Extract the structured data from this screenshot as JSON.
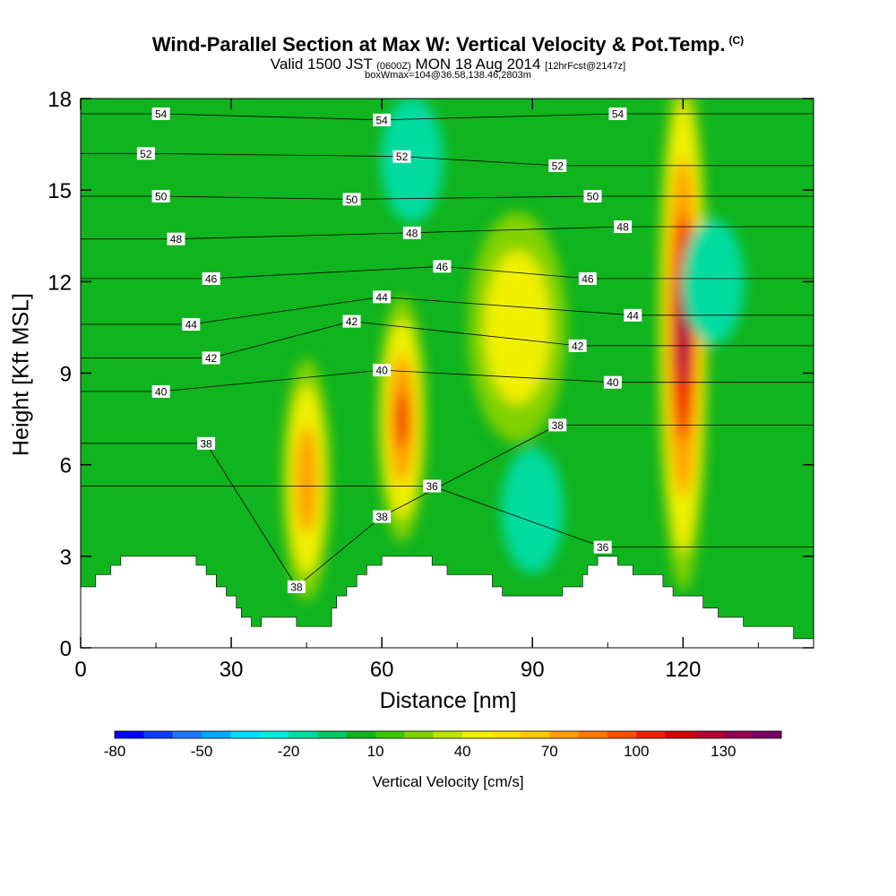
{
  "chart_data": {
    "type": "heatmap",
    "title": "Wind-Parallel Section at Max W: Vertical Velocity & Pot.Temp.",
    "title_mark": "(C)",
    "subtitle_main": "Valid 1500 JST",
    "subtitle_utc": "(0600Z)",
    "subtitle_date": "MON 18 Aug 2014",
    "subtitle_fcst": "[12hrFcst@2147z]",
    "subtitle2": "boxWmax=104@36.58,138.46,2803m",
    "xlabel": "Distance [nm]",
    "ylabel": "Height [Kft MSL]",
    "xlim": [
      0,
      146
    ],
    "ylim": [
      0,
      18
    ],
    "x_ticks": [
      "0",
      "30",
      "60",
      "90",
      "120"
    ],
    "y_ticks": [
      "0",
      "3",
      "6",
      "9",
      "12",
      "15",
      "18"
    ],
    "colorbar": {
      "label": "Vertical Velocity [cm/s]",
      "min": -80,
      "max": 150,
      "step": 10,
      "tick_labels": [
        "-80",
        "-50",
        "-20",
        "10",
        "40",
        "70",
        "100",
        "130"
      ],
      "colors": [
        "#0000ff",
        "#0a3cff",
        "#1e78ff",
        "#00aaff",
        "#00dcff",
        "#00f0dc",
        "#00dca0",
        "#00c864",
        "#10b41e",
        "#3cc800",
        "#82d200",
        "#bee600",
        "#f0f000",
        "#ffe100",
        "#ffc800",
        "#ffa000",
        "#ff7800",
        "#ff5000",
        "#f01e00",
        "#d20000",
        "#b40032",
        "#960050",
        "#780064"
      ]
    },
    "updraft_cores_cm_per_s": [
      {
        "x_nm": 45,
        "z_kft": 5.5,
        "w": 90
      },
      {
        "x_nm": 64,
        "z_kft": 7.5,
        "w": 105
      },
      {
        "x_nm": 87,
        "z_kft": 10.5,
        "w": 60
      },
      {
        "x_nm": 120,
        "z_kft": 10.5,
        "w": 140
      }
    ],
    "downdraft_zones_cm_per_s": [
      {
        "x_nm": 90,
        "z_kft": 4.5,
        "w": -15
      },
      {
        "x_nm": 126,
        "z_kft": 12,
        "w": -20
      },
      {
        "x_nm": 66,
        "z_kft": 16,
        "w": -15
      }
    ],
    "theta_contour_labels": [
      {
        "text": "54",
        "x": 16,
        "y": 17.5
      },
      {
        "text": "54",
        "x": 60,
        "y": 17.3
      },
      {
        "text": "54",
        "x": 107,
        "y": 17.5
      },
      {
        "text": "52",
        "x": 13,
        "y": 16.2
      },
      {
        "text": "52",
        "x": 64,
        "y": 16.1
      },
      {
        "text": "52",
        "x": 95,
        "y": 15.8
      },
      {
        "text": "50",
        "x": 16,
        "y": 14.8
      },
      {
        "text": "50",
        "x": 54,
        "y": 14.7
      },
      {
        "text": "50",
        "x": 102,
        "y": 14.8
      },
      {
        "text": "48",
        "x": 19,
        "y": 13.4
      },
      {
        "text": "48",
        "x": 66,
        "y": 13.6
      },
      {
        "text": "48",
        "x": 108,
        "y": 13.8
      },
      {
        "text": "46",
        "x": 26,
        "y": 12.1
      },
      {
        "text": "46",
        "x": 72,
        "y": 12.5
      },
      {
        "text": "46",
        "x": 101,
        "y": 12.1
      },
      {
        "text": "44",
        "x": 22,
        "y": 10.6
      },
      {
        "text": "44",
        "x": 60,
        "y": 11.5
      },
      {
        "text": "44",
        "x": 110,
        "y": 10.9
      },
      {
        "text": "42",
        "x": 54,
        "y": 10.7
      },
      {
        "text": "42",
        "x": 26,
        "y": 9.5
      },
      {
        "text": "42",
        "x": 99,
        "y": 9.9
      },
      {
        "text": "40",
        "x": 16,
        "y": 8.4
      },
      {
        "text": "40",
        "x": 60,
        "y": 9.1
      },
      {
        "text": "40",
        "x": 106,
        "y": 8.7
      },
      {
        "text": "38",
        "x": 25,
        "y": 6.7
      },
      {
        "text": "38",
        "x": 95,
        "y": 7.3
      },
      {
        "text": "38",
        "x": 60,
        "y": 4.3
      },
      {
        "text": "38",
        "x": 43,
        "y": 2.0
      },
      {
        "text": "36",
        "x": 70,
        "y": 5.3
      },
      {
        "text": "36",
        "x": 104,
        "y": 3.3
      }
    ],
    "terrain_height_kft": [
      [
        0,
        2.0
      ],
      [
        3,
        2.0
      ],
      [
        3,
        2.4
      ],
      [
        6,
        2.4
      ],
      [
        6,
        2.7
      ],
      [
        8,
        2.7
      ],
      [
        8,
        3.0
      ],
      [
        23,
        3.0
      ],
      [
        23,
        2.7
      ],
      [
        25,
        2.7
      ],
      [
        25,
        2.4
      ],
      [
        27,
        2.4
      ],
      [
        27,
        2.0
      ],
      [
        29,
        2.0
      ],
      [
        29,
        1.7
      ],
      [
        31,
        1.7
      ],
      [
        31,
        1.3
      ],
      [
        32,
        1.3
      ],
      [
        32,
        1.0
      ],
      [
        34,
        1.0
      ],
      [
        34,
        0.7
      ],
      [
        36,
        0.7
      ],
      [
        36,
        1.0
      ],
      [
        43,
        1.0
      ],
      [
        43,
        0.7
      ],
      [
        50,
        0.7
      ],
      [
        50,
        1.3
      ],
      [
        51,
        1.3
      ],
      [
        51,
        1.7
      ],
      [
        53,
        1.7
      ],
      [
        53,
        2.0
      ],
      [
        55,
        2.0
      ],
      [
        55,
        2.4
      ],
      [
        57,
        2.4
      ],
      [
        57,
        2.7
      ],
      [
        60,
        2.7
      ],
      [
        60,
        3.0
      ],
      [
        70,
        3.0
      ],
      [
        70,
        2.7
      ],
      [
        73,
        2.7
      ],
      [
        73,
        2.4
      ],
      [
        82,
        2.4
      ],
      [
        82,
        2.0
      ],
      [
        84,
        2.0
      ],
      [
        84,
        1.7
      ],
      [
        96,
        1.7
      ],
      [
        96,
        2.0
      ],
      [
        100,
        2.0
      ],
      [
        100,
        2.4
      ],
      [
        101,
        2.4
      ],
      [
        101,
        2.7
      ],
      [
        103,
        2.7
      ],
      [
        103,
        3.0
      ],
      [
        107,
        3.0
      ],
      [
        107,
        2.7
      ],
      [
        110,
        2.7
      ],
      [
        110,
        2.4
      ],
      [
        116,
        2.4
      ],
      [
        116,
        2.0
      ],
      [
        118,
        2.0
      ],
      [
        118,
        1.7
      ],
      [
        124,
        1.7
      ],
      [
        124,
        1.3
      ],
      [
        127,
        1.3
      ],
      [
        127,
        1.0
      ],
      [
        132,
        1.0
      ],
      [
        132,
        0.7
      ],
      [
        142,
        0.7
      ],
      [
        142,
        0.3
      ],
      [
        146,
        0.3
      ]
    ]
  }
}
